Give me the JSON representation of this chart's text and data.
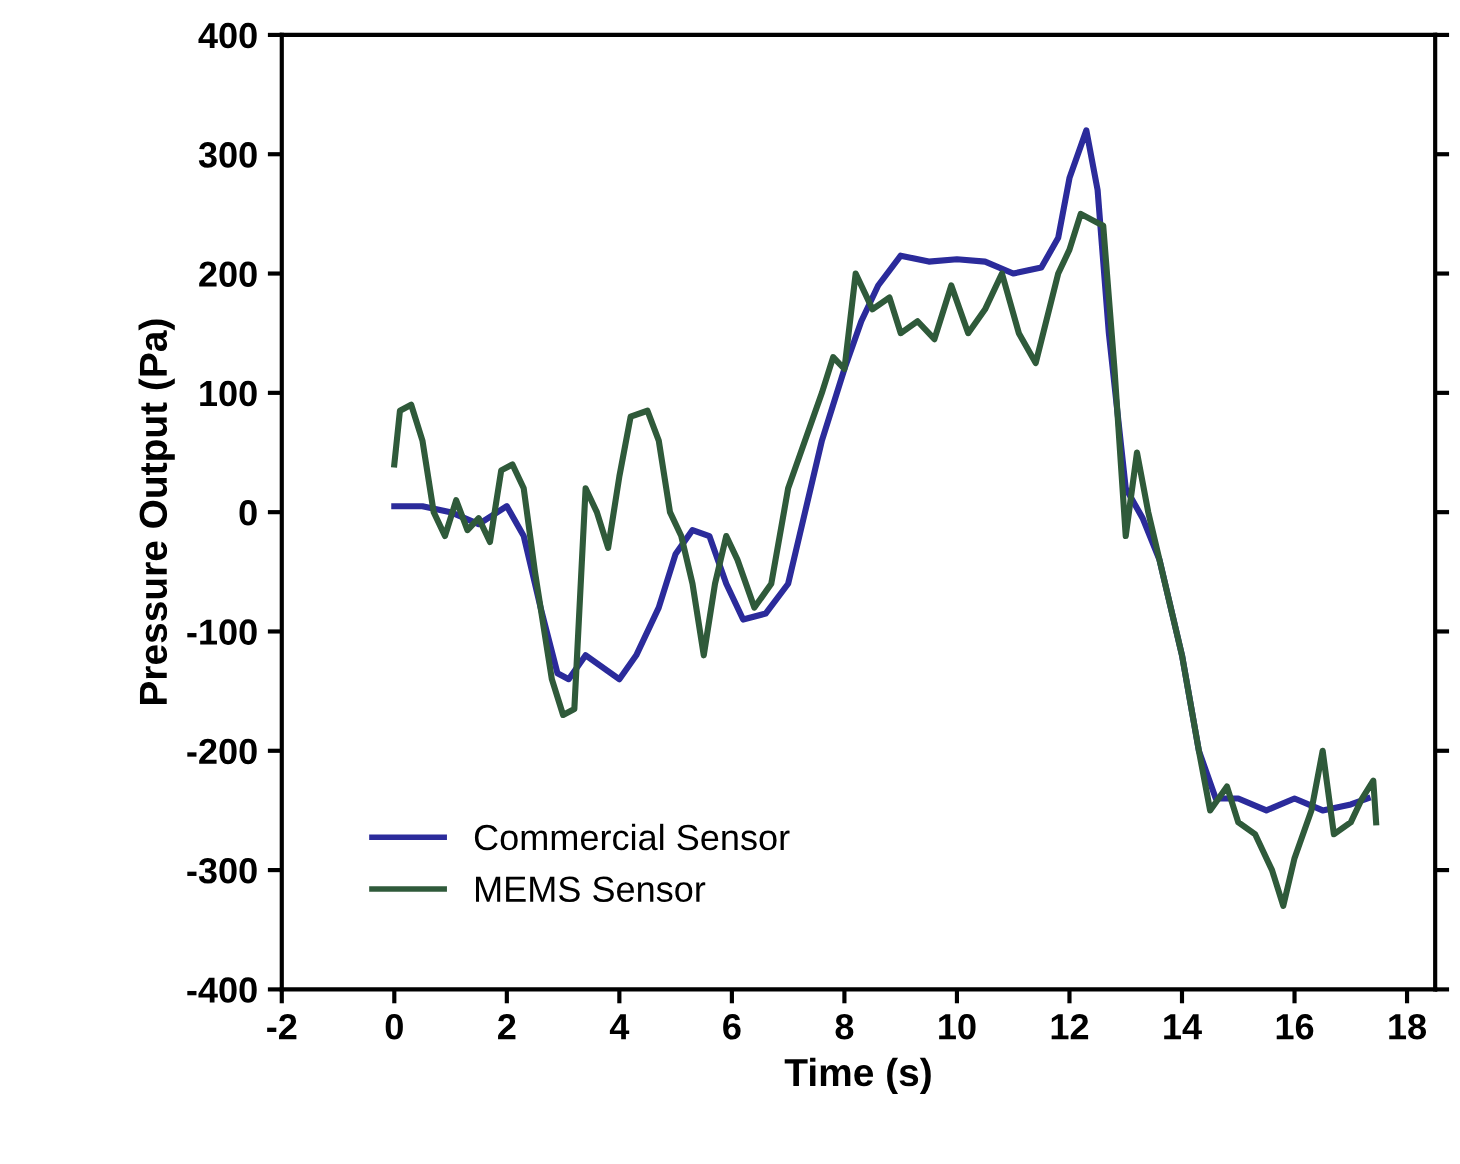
{
  "chart_data": {
    "type": "line",
    "xlabel": "Time (s)",
    "ylabel": "Pressure Output (Pa)",
    "xlim": [
      -2,
      18.5
    ],
    "ylim": [
      -400,
      400
    ],
    "xticks": [
      -2,
      0,
      2,
      4,
      6,
      8,
      10,
      12,
      14,
      16,
      18
    ],
    "yticks": [
      -400,
      -300,
      -200,
      -100,
      0,
      100,
      200,
      300,
      400
    ],
    "grid": false,
    "legend": "bottom left",
    "marker": "none",
    "line_style": "solid",
    "series": [
      {
        "name": "Commercial Sensor",
        "color": "#2b2b9b",
        "x": [
          0,
          0.5,
          1,
          1.5,
          2,
          2.3,
          2.6,
          2.9,
          3.1,
          3.4,
          3.7,
          4.0,
          4.3,
          4.7,
          5.0,
          5.3,
          5.6,
          5.9,
          6.2,
          6.6,
          7.0,
          7.3,
          7.6,
          8.0,
          8.3,
          8.6,
          9.0,
          9.5,
          10,
          10.5,
          11,
          11.5,
          11.8,
          12.0,
          12.3,
          12.5,
          12.7,
          13.0,
          13.3,
          13.6,
          14.0,
          14.3,
          14.6,
          15.0,
          15.5,
          16.0,
          16.5,
          17.0,
          17.3
        ],
        "values": [
          5,
          5,
          0,
          -10,
          5,
          -20,
          -80,
          -135,
          -140,
          -120,
          -130,
          -140,
          -120,
          -80,
          -35,
          -15,
          -20,
          -60,
          -90,
          -85,
          -60,
          0,
          60,
          120,
          160,
          190,
          215,
          210,
          212,
          210,
          200,
          205,
          230,
          280,
          320,
          270,
          150,
          20,
          -5,
          -40,
          -120,
          -200,
          -240,
          -240,
          -250,
          -240,
          -250,
          -245,
          -240
        ]
      },
      {
        "name": "MEMS Sensor",
        "color": "#2f5a3a",
        "x": [
          0,
          0.1,
          0.3,
          0.5,
          0.7,
          0.9,
          1.1,
          1.3,
          1.5,
          1.7,
          1.9,
          2.1,
          2.3,
          2.5,
          2.8,
          3.0,
          3.2,
          3.4,
          3.6,
          3.8,
          4.0,
          4.2,
          4.5,
          4.7,
          4.9,
          5.1,
          5.3,
          5.5,
          5.7,
          5.9,
          6.1,
          6.4,
          6.7,
          7.0,
          7.3,
          7.6,
          7.8,
          8.0,
          8.2,
          8.5,
          8.8,
          9.0,
          9.3,
          9.6,
          9.9,
          10.2,
          10.5,
          10.8,
          11.1,
          11.4,
          11.8,
          12.0,
          12.2,
          12.4,
          12.6,
          12.8,
          13.0,
          13.2,
          13.4,
          13.7,
          14.0,
          14.3,
          14.5,
          14.8,
          15.0,
          15.3,
          15.6,
          15.8,
          16.0,
          16.3,
          16.5,
          16.7,
          17.0,
          17.2,
          17.4,
          17.45
        ],
        "values": [
          40,
          85,
          90,
          60,
          0,
          -20,
          10,
          -15,
          -5,
          -25,
          35,
          40,
          20,
          -50,
          -140,
          -170,
          -165,
          20,
          0,
          -30,
          30,
          80,
          85,
          60,
          0,
          -20,
          -60,
          -120,
          -60,
          -20,
          -40,
          -80,
          -60,
          20,
          60,
          100,
          130,
          120,
          200,
          170,
          180,
          150,
          160,
          145,
          190,
          150,
          170,
          200,
          150,
          125,
          200,
          220,
          250,
          245,
          240,
          120,
          -20,
          50,
          0,
          -60,
          -120,
          -200,
          -250,
          -230,
          -260,
          -270,
          -300,
          -330,
          -290,
          -250,
          -200,
          -270,
          -260,
          -240,
          -225,
          -260
        ]
      }
    ]
  }
}
